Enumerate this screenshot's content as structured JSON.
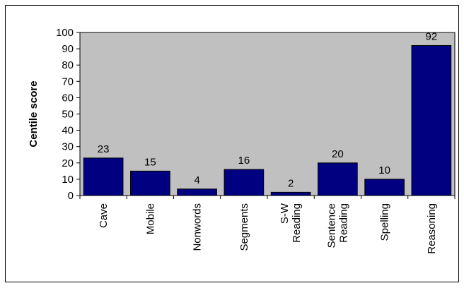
{
  "chart_data": {
    "type": "bar",
    "title": "",
    "xlabel": "",
    "ylabel": "Centile score",
    "ylim": [
      0,
      100
    ],
    "yticks": [
      0,
      10,
      20,
      30,
      40,
      50,
      60,
      70,
      80,
      90,
      100
    ],
    "grid": false,
    "legend": "none",
    "categories": [
      [
        "Cave"
      ],
      [
        "Mobile"
      ],
      [
        "Nonwords"
      ],
      [
        "Segments"
      ],
      [
        "S-W",
        "Reading"
      ],
      [
        "Sentence",
        "Reading"
      ],
      [
        "Spelling"
      ],
      [
        "Reasoning"
      ]
    ],
    "values": [
      23,
      15,
      4,
      16,
      2,
      20,
      10,
      92
    ],
    "colors": {
      "bar": "#000080",
      "plot_background": "#c0c0c0",
      "frame": "#000000"
    }
  }
}
